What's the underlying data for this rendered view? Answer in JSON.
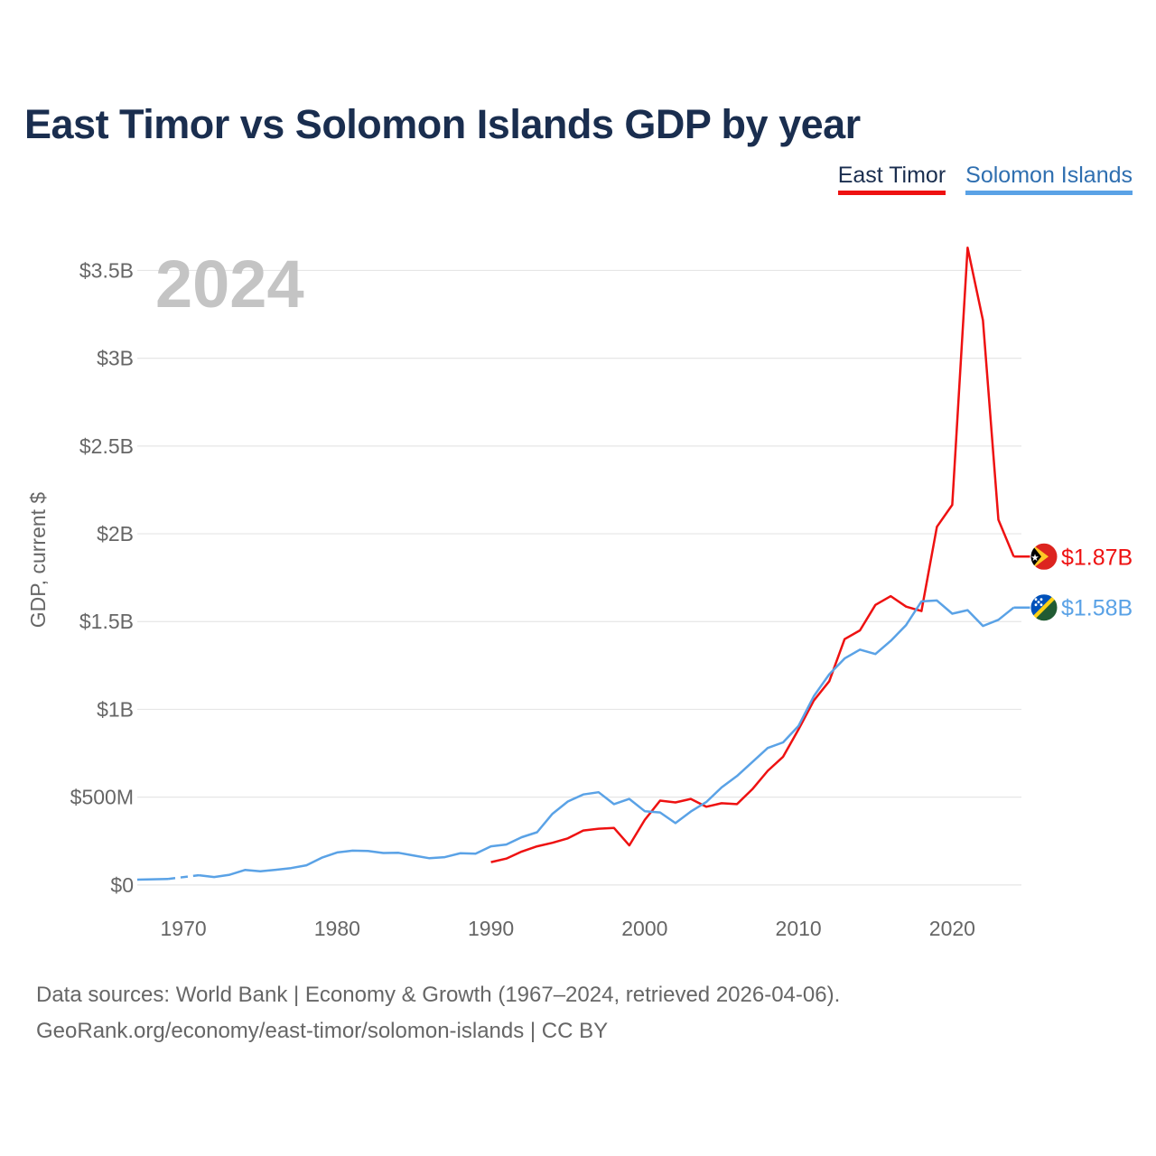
{
  "title": "East Timor vs Solomon Islands GDP by year",
  "legend": [
    {
      "label": "East Timor",
      "color": "#ee1111"
    },
    {
      "label": "Solomon Islands",
      "color": "#5aa2e6"
    }
  ],
  "source": {
    "line1": "Data sources: World Bank | Economy & Growth (1967–2024, retrieved 2026-04-06).",
    "line2": "GeoRank.org/economy/east-timor/solomon-islands | CC BY"
  },
  "chart_data": {
    "type": "line",
    "title": "East Timor vs Solomon Islands GDP by year",
    "year_watermark": "2024",
    "ylabel": "GDP, current $",
    "xlabel": "",
    "xlim": [
      1967,
      2024.5
    ],
    "ylim": [
      -150000000,
      3600000000
    ],
    "x_ticks": [
      1970,
      1980,
      1990,
      2000,
      2010,
      2020
    ],
    "y_ticks": [
      {
        "value": 0,
        "label": "$0"
      },
      {
        "value": 500000000,
        "label": "$500M"
      },
      {
        "value": 1000000000,
        "label": "$1B"
      },
      {
        "value": 1500000000,
        "label": "$1.5B"
      },
      {
        "value": 2000000000,
        "label": "$2B"
      },
      {
        "value": 2500000000,
        "label": "$2.5B"
      },
      {
        "value": 3000000000,
        "label": "$3B"
      },
      {
        "value": 3500000000,
        "label": "$3.5B"
      }
    ],
    "grid": true,
    "series": [
      {
        "name": "East Timor",
        "color": "#ee1111",
        "end_label": "$1.87B",
        "flag": "east-timor-flag",
        "points": [
          [
            1990,
            130000000
          ],
          [
            1991,
            150000000
          ],
          [
            1992,
            190000000
          ],
          [
            1993,
            220000000
          ],
          [
            1994,
            240000000
          ],
          [
            1995,
            265000000
          ],
          [
            1996,
            310000000
          ],
          [
            1997,
            320000000
          ],
          [
            1998,
            325000000
          ],
          [
            1999,
            225000000
          ],
          [
            2000,
            370000000
          ],
          [
            2001,
            480000000
          ],
          [
            2002,
            470000000
          ],
          [
            2003,
            490000000
          ],
          [
            2004,
            445000000
          ],
          [
            2005,
            465000000
          ],
          [
            2006,
            460000000
          ],
          [
            2007,
            545000000
          ],
          [
            2008,
            650000000
          ],
          [
            2009,
            730000000
          ],
          [
            2010,
            885000000
          ],
          [
            2011,
            1050000000
          ],
          [
            2012,
            1160000000
          ],
          [
            2013,
            1400000000
          ],
          [
            2014,
            1450000000
          ],
          [
            2015,
            1595000000
          ],
          [
            2016,
            1645000000
          ],
          [
            2017,
            1585000000
          ],
          [
            2018,
            1560000000
          ],
          [
            2019,
            2040000000
          ],
          [
            2020,
            2165000000
          ],
          [
            2021,
            3630000000
          ],
          [
            2022,
            3215000000
          ],
          [
            2023,
            2080000000
          ],
          [
            2024,
            1870000000
          ]
        ]
      },
      {
        "name": "Solomon Islands",
        "color": "#5aa2e6",
        "end_label": "$1.58B",
        "flag": "solomon-islands-flag",
        "points": [
          [
            1967,
            30000000
          ],
          [
            1968,
            32000000
          ],
          [
            1969,
            34000000
          ],
          [
            1971,
            55000000
          ],
          [
            1972,
            45000000
          ],
          [
            1973,
            58000000
          ],
          [
            1974,
            85000000
          ],
          [
            1975,
            78000000
          ],
          [
            1976,
            86000000
          ],
          [
            1977,
            96000000
          ],
          [
            1978,
            112000000
          ],
          [
            1979,
            155000000
          ],
          [
            1980,
            185000000
          ],
          [
            1981,
            195000000
          ],
          [
            1982,
            193000000
          ],
          [
            1983,
            182000000
          ],
          [
            1984,
            183000000
          ],
          [
            1985,
            167000000
          ],
          [
            1986,
            152000000
          ],
          [
            1987,
            158000000
          ],
          [
            1988,
            180000000
          ],
          [
            1989,
            178000000
          ],
          [
            1990,
            220000000
          ],
          [
            1991,
            230000000
          ],
          [
            1992,
            272000000
          ],
          [
            1993,
            300000000
          ],
          [
            1994,
            405000000
          ],
          [
            1995,
            475000000
          ],
          [
            1996,
            515000000
          ],
          [
            1997,
            528000000
          ],
          [
            1998,
            460000000
          ],
          [
            1999,
            490000000
          ],
          [
            2000,
            420000000
          ],
          [
            2001,
            413000000
          ],
          [
            2002,
            352000000
          ],
          [
            2003,
            418000000
          ],
          [
            2004,
            472000000
          ],
          [
            2005,
            555000000
          ],
          [
            2006,
            620000000
          ],
          [
            2007,
            700000000
          ],
          [
            2008,
            780000000
          ],
          [
            2009,
            812000000
          ],
          [
            2010,
            905000000
          ],
          [
            2011,
            1075000000
          ],
          [
            2012,
            1200000000
          ],
          [
            2013,
            1290000000
          ],
          [
            2014,
            1340000000
          ],
          [
            2015,
            1315000000
          ],
          [
            2016,
            1390000000
          ],
          [
            2017,
            1480000000
          ],
          [
            2018,
            1615000000
          ],
          [
            2019,
            1620000000
          ],
          [
            2020,
            1545000000
          ],
          [
            2021,
            1565000000
          ],
          [
            2022,
            1475000000
          ],
          [
            2023,
            1510000000
          ],
          [
            2024,
            1580000000
          ]
        ]
      }
    ]
  }
}
